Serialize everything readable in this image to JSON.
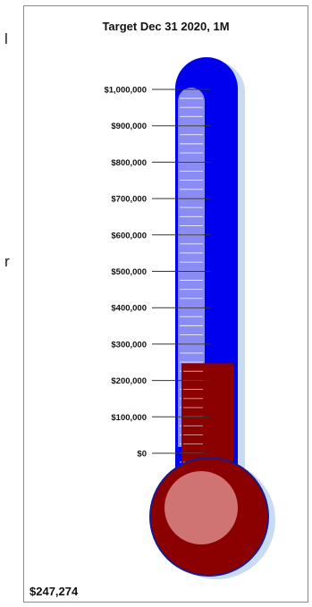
{
  "chart_data": {
    "type": "thermometer",
    "title": "Target Dec 31 2020, 1M",
    "value": 247274,
    "value_label": "$247,274",
    "ylim": [
      0,
      1000000
    ],
    "ticks": [
      {
        "value": 1000000,
        "label": "$1,000,000"
      },
      {
        "value": 900000,
        "label": "$900,000"
      },
      {
        "value": 800000,
        "label": "$800,000"
      },
      {
        "value": 700000,
        "label": "$700,000"
      },
      {
        "value": 600000,
        "label": "$600,000"
      },
      {
        "value": 500000,
        "label": "$500,000"
      },
      {
        "value": 400000,
        "label": "$400,000"
      },
      {
        "value": 300000,
        "label": "$300,000"
      },
      {
        "value": 200000,
        "label": "$200,000"
      },
      {
        "value": 100000,
        "label": "$100,000"
      },
      {
        "value": 0,
        "label": "$0"
      }
    ],
    "colors": {
      "tube": "#0000ee",
      "fill": "#8b0000",
      "highlight": "#b9b9f5",
      "shadow": "#c7dcf3"
    }
  },
  "edge_glyphs": [
    "l",
    "r"
  ]
}
